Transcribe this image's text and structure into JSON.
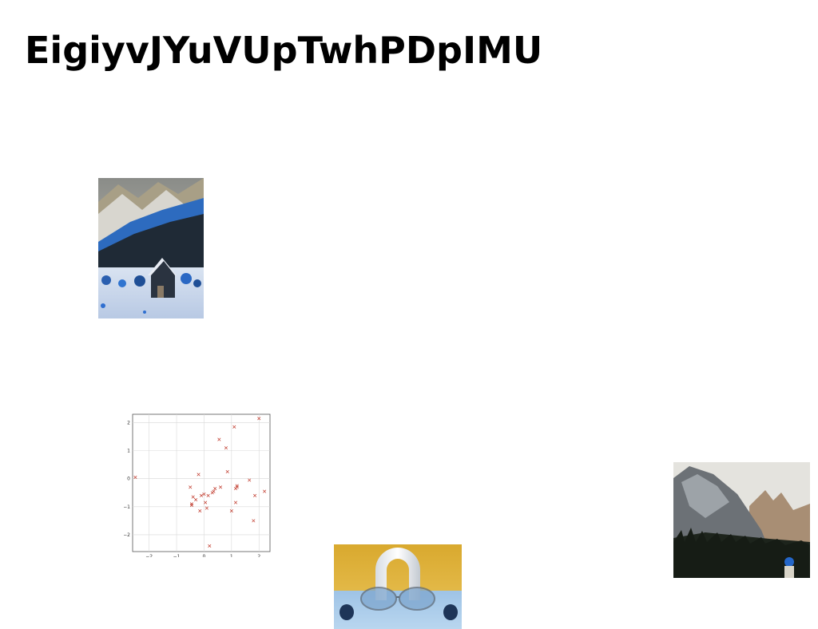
{
  "page": {
    "title": "EigiyvJYuVUpTwhPDpIMU"
  },
  "images": {
    "cabin": {
      "subject": "snowy-cabin-mountain-photo"
    },
    "scatter": {
      "subject": "scatter-plot-thumbnail"
    },
    "glasses": {
      "subject": "glasses-sculpture-photo"
    },
    "mountain": {
      "subject": "rocky-mountain-hiker-photo"
    }
  },
  "chart_data": {
    "type": "scatter",
    "title": "",
    "xlabel": "",
    "ylabel": "",
    "xlim": [
      -2.6,
      2.4
    ],
    "ylim": [
      -2.6,
      2.3
    ],
    "xticks": [
      "−2",
      "−1",
      "0",
      "1",
      "2"
    ],
    "yticks": [
      "2",
      "1",
      "0",
      "−1",
      "−2"
    ],
    "grid": true,
    "marker_color": "#c0392b",
    "x": [
      -2.5,
      -0.5,
      -0.45,
      -0.4,
      -0.3,
      -0.2,
      -0.15,
      -0.1,
      0.0,
      0.05,
      0.1,
      0.2,
      0.3,
      0.35,
      0.4,
      0.55,
      0.6,
      0.8,
      0.85,
      1.0,
      1.1,
      1.15,
      1.15,
      1.2,
      1.65,
      1.8,
      1.85,
      2.0,
      2.2,
      1.2,
      -0.45,
      0.15
    ],
    "y": [
      0.05,
      -0.3,
      -0.9,
      -0.65,
      -0.75,
      0.15,
      -1.15,
      -0.6,
      -0.55,
      -0.85,
      -1.05,
      -2.4,
      -0.5,
      -0.45,
      -0.35,
      1.4,
      -0.3,
      1.1,
      0.25,
      -1.15,
      1.85,
      -0.85,
      -0.35,
      -0.25,
      -0.05,
      -1.5,
      -0.6,
      2.15,
      -0.45,
      -0.3,
      -0.95,
      -0.6
    ]
  }
}
